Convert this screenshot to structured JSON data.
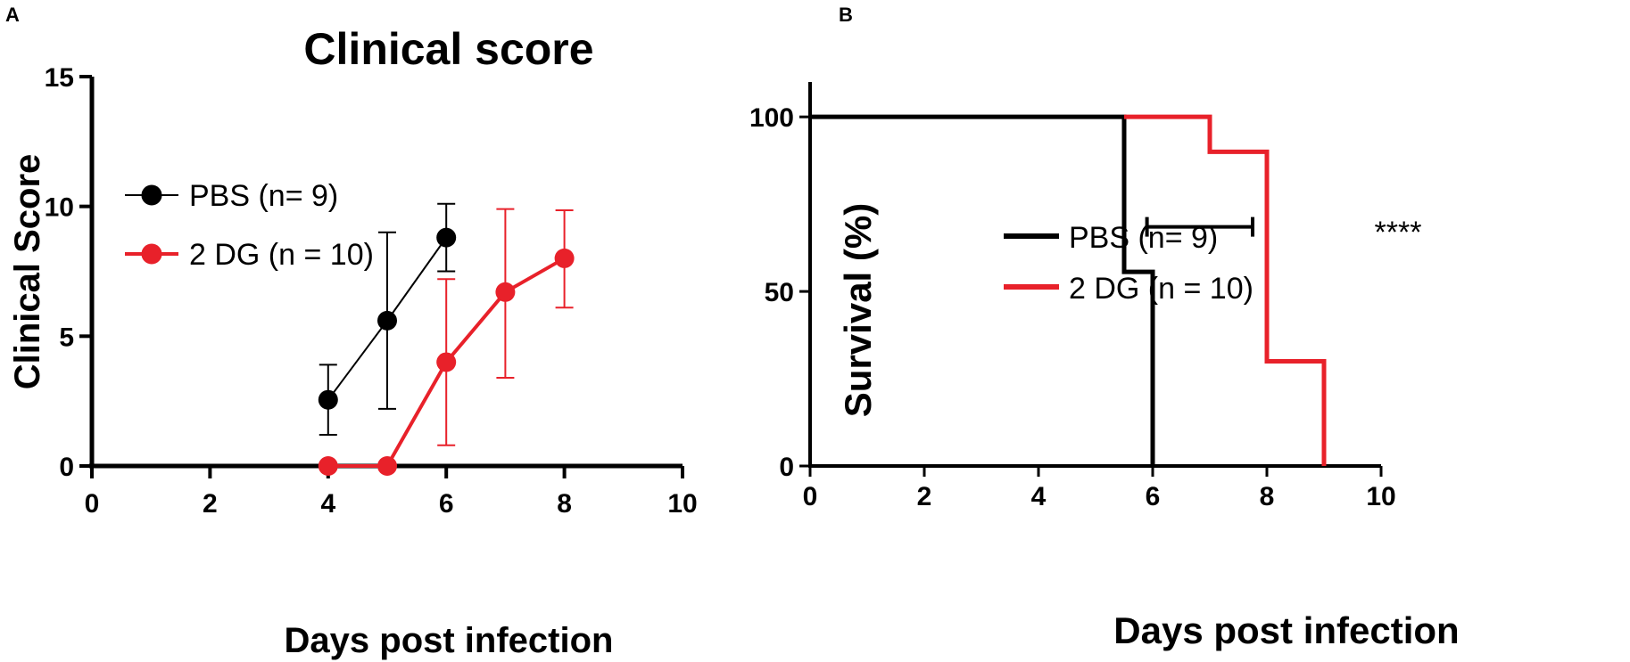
{
  "chart_data": [
    {
      "panel": "A",
      "type": "line",
      "title": "Clinical score",
      "xlabel": "Days post infection",
      "ylabel": "Clinical Score",
      "xlim": [
        0,
        10
      ],
      "ylim": [
        0,
        15
      ],
      "xticks": [
        "0",
        "2",
        "4",
        "6",
        "8",
        "10"
      ],
      "yticks": [
        "0",
        "5",
        "10",
        "15"
      ],
      "legend_position": "top-left",
      "series": [
        {
          "name": "PBS (n= 9)",
          "color": "#000000",
          "x": [
            4,
            5,
            6
          ],
          "y": [
            2.55,
            5.6,
            8.8
          ],
          "err_low": [
            1.2,
            2.2,
            7.5
          ],
          "err_high": [
            3.9,
            9.0,
            10.1
          ]
        },
        {
          "name": "2 DG (n = 10)",
          "color": "#e8212a",
          "x": [
            4,
            5,
            6,
            7,
            8
          ],
          "y": [
            0,
            0,
            4.0,
            6.7,
            8.0
          ],
          "err_low": [
            0,
            0,
            0.8,
            3.4,
            6.1
          ],
          "err_high": [
            0,
            0,
            7.2,
            9.9,
            9.85
          ]
        }
      ]
    },
    {
      "panel": "B",
      "type": "line",
      "subtype": "survival-step",
      "title": "",
      "xlabel": "Days post infection",
      "ylabel": "Survival (%)",
      "xlim": [
        0,
        10
      ],
      "ylim": [
        0,
        110
      ],
      "xticks": [
        "0",
        "2",
        "4",
        "6",
        "8",
        "10"
      ],
      "yticks": [
        "0",
        "50",
        "100"
      ],
      "legend_position": "center-left",
      "series": [
        {
          "name": "PBS (n= 9)",
          "color": "#000000",
          "steps": [
            [
              0,
              100
            ],
            [
              5.5,
              100
            ],
            [
              5.5,
              55.6
            ],
            [
              6,
              55.6
            ],
            [
              6,
              0
            ]
          ]
        },
        {
          "name": "2 DG (n = 10)",
          "color": "#e8212a",
          "steps": [
            [
              5.5,
              100
            ],
            [
              7,
              100
            ],
            [
              7,
              90
            ],
            [
              8,
              90
            ],
            [
              8,
              30
            ],
            [
              9,
              30
            ],
            [
              9,
              0
            ]
          ]
        }
      ],
      "annotation": {
        "text": "****",
        "x_from": 5.9,
        "x_to": 7.75,
        "y": 68.5
      }
    }
  ]
}
